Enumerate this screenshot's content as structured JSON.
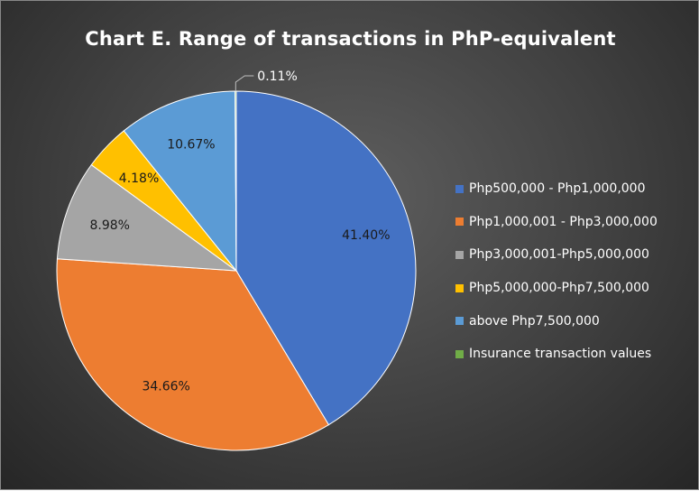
{
  "chart_data": {
    "type": "pie",
    "title": "Chart E. Range of transactions in PhP-equivalent",
    "categories": [
      "Php500,000 - Php1,000,000",
      "Php1,000,001 - Php3,000,000",
      "Php3,000,001-Php5,000,000",
      "Php5,000,000-Php7,500,000",
      "above Php7,500,000",
      "Insurance transaction values"
    ],
    "values": [
      41.4,
      34.66,
      8.98,
      4.18,
      10.67,
      0.11
    ],
    "data_labels": [
      "41.40%",
      "34.66%",
      "8.98%",
      "4.18%",
      "10.67%",
      "0.11%"
    ],
    "colors": [
      "#4472C4",
      "#ED7D31",
      "#A5A5A5",
      "#FFC000",
      "#5B9BD5",
      "#70AD47"
    ],
    "legend_position": "right",
    "start_angle": "12 o'clock",
    "direction": "clockwise"
  }
}
